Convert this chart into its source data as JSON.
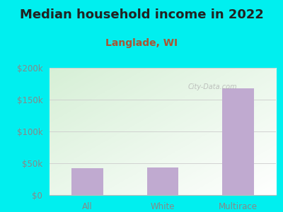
{
  "title": "Median household income in 2022",
  "subtitle": "Langlade, WI",
  "categories": [
    "All",
    "White",
    "Multirace"
  ],
  "values": [
    42000,
    43000,
    168000
  ],
  "bar_color": "#c0aad0",
  "ylim": [
    0,
    200000
  ],
  "yticks": [
    0,
    50000,
    100000,
    150000,
    200000
  ],
  "ytick_labels": [
    "$0",
    "$50k",
    "$100k",
    "$150k",
    "$200k"
  ],
  "bg_outer": "#00efef",
  "bg_grad_top": "#d8efd8",
  "bg_grad_bottom": "#f5fff5",
  "title_color": "#222222",
  "subtitle_color": "#aa5533",
  "tick_color": "#888888",
  "title_fontsize": 13,
  "subtitle_fontsize": 10,
  "tick_fontsize": 8.5,
  "watermark": "City-Data.com"
}
